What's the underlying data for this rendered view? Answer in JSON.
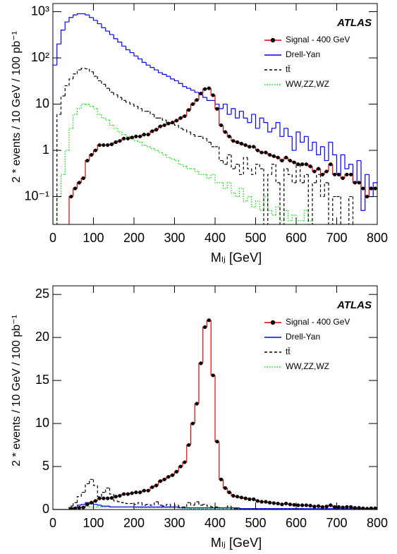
{
  "chart_data": [
    {
      "type": "histogram",
      "log_y": true,
      "legend": "upper right",
      "annotation": "ATLAS",
      "xlabel": "Mₗⱼ [GeV]",
      "ylabel": "2 * events / 10 GeV / 100 pb⁻¹",
      "bins": [
        0,
        10,
        20,
        30,
        40,
        50,
        60,
        70,
        80,
        90,
        100,
        110,
        120,
        130,
        140,
        150,
        160,
        170,
        180,
        190,
        200,
        210,
        220,
        230,
        240,
        250,
        260,
        270,
        280,
        290,
        300,
        310,
        320,
        330,
        340,
        350,
        360,
        370,
        380,
        390,
        400,
        410,
        420,
        430,
        440,
        450,
        460,
        470,
        480,
        490,
        500,
        510,
        520,
        530,
        540,
        550,
        560,
        570,
        580,
        590,
        600,
        610,
        620,
        630,
        640,
        650,
        660,
        670,
        680,
        690,
        700,
        710,
        720,
        730,
        740,
        750,
        760,
        770,
        780,
        790,
        800
      ],
      "xlim": [
        0,
        800
      ],
      "xticks": [
        0,
        100,
        200,
        300,
        400,
        500,
        600,
        700,
        800
      ],
      "ylim": [
        0.025,
        1500
      ],
      "yticks": [
        {
          "value": 0.1,
          "label": "10⁻¹"
        },
        1,
        10,
        {
          "value": 100,
          "label": "10²"
        },
        {
          "value": 1000,
          "label": "10³"
        }
      ],
      "series": [
        {
          "name": "Signal - 400 GeV",
          "color": "#e00000",
          "marker_color": "#000000",
          "line_style": "solid",
          "values": [
            0,
            0,
            0,
            0,
            0.1,
            0.15,
            0.2,
            0.25,
            0.6,
            0.8,
            1.0,
            1.3,
            1.3,
            1.3,
            1.35,
            1.5,
            1.6,
            1.8,
            1.8,
            1.9,
            2.0,
            2.0,
            2.2,
            2.2,
            2.6,
            2.8,
            3.3,
            3.5,
            3.8,
            4.0,
            4.4,
            5.0,
            5.5,
            7.5,
            10,
            12.3,
            17,
            21.2,
            22,
            15.6,
            7.9,
            3.5,
            2.5,
            2.0,
            1.6,
            1.5,
            1.4,
            1.3,
            1.2,
            1.2,
            1.0,
            0.9,
            0.9,
            0.8,
            0.75,
            0.7,
            0.6,
            0.7,
            0.6,
            0.55,
            0.5,
            0.5,
            0.5,
            0.45,
            0.35,
            0.4,
            0.3,
            0.35,
            0.5,
            0.3,
            0.3,
            0.25,
            0.3,
            0.3,
            0.2,
            0.2,
            0.15,
            0.1,
            0.15,
            0.15
          ]
        },
        {
          "name": "Drell-Yan",
          "color": "#0000ff",
          "line_style": "solid",
          "values": [
            70,
            200,
            400,
            600,
            750,
            850,
            900,
            900,
            850,
            750,
            650,
            550,
            450,
            380,
            320,
            260,
            220,
            180,
            150,
            130,
            110,
            95,
            80,
            70,
            62,
            55,
            48,
            44,
            40,
            35,
            32,
            28,
            24,
            22,
            20,
            18,
            16,
            14,
            12,
            12,
            10,
            8,
            10,
            6,
            8,
            5,
            7,
            5,
            4,
            6,
            3,
            5,
            4,
            2.5,
            3,
            4,
            2,
            3,
            2,
            1,
            2.5,
            1.5,
            2,
            1,
            1.5,
            0.8,
            1.2,
            0.6,
            1.5,
            0.8,
            0.3,
            0.8,
            0.4,
            0.5,
            0.2,
            0.6,
            0.05,
            0.3,
            0.1,
            0.2
          ]
        },
        {
          "name": "tt̄",
          "color": "#000000",
          "line_style": "dashed",
          "values": [
            0,
            6,
            15,
            25,
            35,
            45,
            55,
            60,
            58,
            50,
            40,
            32,
            27,
            22,
            18,
            16,
            14,
            12,
            11,
            10,
            9,
            8,
            7,
            7,
            6,
            5,
            5,
            4.5,
            4,
            3.8,
            3.5,
            3,
            2.8,
            2.5,
            2.2,
            2,
            2,
            1.8,
            1.5,
            1.2,
            1.2,
            0.6,
            0.5,
            0.8,
            0.4,
            0.5,
            0.3,
            0.7,
            0.4,
            0.3,
            0.5,
            0.4,
            0,
            0.3,
            0.5,
            0.2,
            0,
            0.4,
            0.3,
            0.2,
            0.5,
            0.2,
            0.3,
            0,
            0.2,
            0.3,
            0.1,
            0.2,
            0,
            0.1,
            0.1,
            0,
            0,
            0.1,
            0,
            0,
            0,
            0,
            0,
            0
          ]
        },
        {
          "name": "WW,ZZ,WZ",
          "color": "#00dd00",
          "line_style": "dotted",
          "values": [
            0,
            0.1,
            0.3,
            1,
            3,
            6,
            8,
            10,
            10,
            9,
            8,
            6,
            5,
            4.5,
            3.5,
            3,
            2.5,
            2.2,
            2,
            1.8,
            1.6,
            1.5,
            1.3,
            1.2,
            1.1,
            1.0,
            0.9,
            0.8,
            0.7,
            0.65,
            0.6,
            0.5,
            0.45,
            0.4,
            0.4,
            0.35,
            0.3,
            0.3,
            0.25,
            0.3,
            0.2,
            0.2,
            0.15,
            0.2,
            0.12,
            0.1,
            0.15,
            0.08,
            0.1,
            0.06,
            0.08,
            0.05,
            0.1,
            0.05,
            0.04,
            0.06,
            0.03,
            0.05,
            0.03,
            0.04,
            0.03,
            0.03,
            0.05,
            0.03,
            0,
            0,
            0,
            0,
            0,
            0,
            0,
            0,
            0,
            0,
            0,
            0,
            0,
            0,
            0,
            0
          ]
        }
      ]
    },
    {
      "type": "histogram",
      "log_y": false,
      "legend": "upper right",
      "annotation": "ATLAS",
      "xlabel": "Mₗⱼ [GeV]",
      "ylabel": "2 * events / 10 GeV / 100 pb⁻¹",
      "bins": [
        0,
        10,
        20,
        30,
        40,
        50,
        60,
        70,
        80,
        90,
        100,
        110,
        120,
        130,
        140,
        150,
        160,
        170,
        180,
        190,
        200,
        210,
        220,
        230,
        240,
        250,
        260,
        270,
        280,
        290,
        300,
        310,
        320,
        330,
        340,
        350,
        360,
        370,
        380,
        390,
        400,
        410,
        420,
        430,
        440,
        450,
        460,
        470,
        480,
        490,
        500,
        510,
        520,
        530,
        540,
        550,
        560,
        570,
        580,
        590,
        600,
        610,
        620,
        630,
        640,
        650,
        660,
        670,
        680,
        690,
        700,
        710,
        720,
        730,
        740,
        750,
        760,
        770,
        780,
        790,
        800
      ],
      "xlim": [
        0,
        800
      ],
      "xticks": [
        0,
        100,
        200,
        300,
        400,
        500,
        600,
        700,
        800
      ],
      "ylim": [
        0,
        26
      ],
      "yticks": [
        0,
        5,
        10,
        15,
        20,
        25
      ],
      "series": [
        {
          "name": "Signal - 400 GeV",
          "color": "#e00000",
          "marker_color": "#000000",
          "line_style": "solid",
          "values": [
            0,
            0,
            0,
            0,
            0.1,
            0.15,
            0.2,
            0.25,
            0.6,
            0.8,
            1.0,
            1.3,
            1.3,
            1.3,
            1.35,
            1.5,
            1.6,
            1.8,
            1.8,
            1.9,
            2.0,
            2.0,
            2.2,
            2.2,
            2.6,
            2.8,
            3.3,
            3.5,
            3.8,
            4.0,
            4.4,
            5.0,
            5.5,
            7.5,
            10,
            12.3,
            17,
            21.2,
            22,
            15.6,
            7.9,
            3.5,
            2.5,
            2.0,
            1.6,
            1.5,
            1.4,
            1.3,
            1.2,
            1.2,
            1.0,
            0.9,
            0.9,
            0.8,
            0.75,
            0.7,
            0.6,
            0.7,
            0.6,
            0.55,
            0.5,
            0.5,
            0.5,
            0.45,
            0.35,
            0.4,
            0.3,
            0.35,
            0.5,
            0.3,
            0.3,
            0.25,
            0.3,
            0.3,
            0.2,
            0.2,
            0.15,
            0.1,
            0.15,
            0.15
          ]
        },
        {
          "name": "Drell-Yan",
          "color": "#0000ff",
          "line_style": "solid",
          "values": [
            0,
            0,
            0,
            0,
            0,
            0.2,
            0.5,
            0.6,
            0.8,
            0.7,
            0.6,
            0.5,
            0.4,
            0.4,
            0.3,
            0.3,
            0.3,
            0.3,
            0.3,
            0.3,
            0.3,
            0.3,
            0.3,
            0.3,
            0.3,
            0.3,
            0.3,
            0.3,
            0.3,
            0.3,
            0.3,
            0.2,
            0.2,
            0.2,
            0.2,
            0.2,
            0.2,
            0.2,
            0.2,
            0.2,
            0.2,
            0.2,
            0.2,
            0.2,
            0.2,
            0.2,
            0.1,
            0.1,
            0.1,
            0.1,
            0.1,
            0.1,
            0.1,
            0.1,
            0.1,
            0.1,
            0.1,
            0.1,
            0.1,
            0.1,
            0.1,
            0.1,
            0.1,
            0.1,
            0.1,
            0.1,
            0.1,
            0.1,
            0.1,
            0.1,
            0.1,
            0.1,
            0.1,
            0.1,
            0.1,
            0.1,
            0.1,
            0.1,
            0.1,
            0.1
          ]
        },
        {
          "name": "tt̄",
          "color": "#000000",
          "line_style": "dashed",
          "values": [
            0,
            0,
            0,
            0,
            0.4,
            0.8,
            1.5,
            2,
            3,
            3.5,
            2.8,
            1.5,
            2,
            2.5,
            1.8,
            1,
            0.9,
            0.8,
            0.7,
            0.7,
            0.6,
            0.8,
            0.5,
            0.6,
            0.5,
            0.9,
            0.5,
            0.4,
            0.6,
            0.3,
            0.5,
            0.3,
            0.3,
            0.8,
            0.5,
            0.9,
            0.5,
            0.6,
            0.4,
            0.3,
            0.3,
            0.2,
            0.2,
            0.4,
            0.1,
            0.1,
            0.1,
            0.1,
            0.1,
            0.1,
            0.1,
            0.1,
            0.1,
            0.1,
            0.1,
            0.1,
            0.1,
            0.1,
            0.1,
            0.1,
            0.1,
            0.1,
            0,
            0,
            0,
            0,
            0,
            0,
            0,
            0,
            0,
            0,
            0,
            0,
            0,
            0,
            0,
            0,
            0,
            0
          ]
        },
        {
          "name": "WW,ZZ,WZ",
          "color": "#00dd00",
          "line_style": "dotted",
          "values": [
            0,
            0,
            0,
            0,
            0.1,
            0.2,
            0.3,
            0.3,
            0.3,
            0.3,
            0.3,
            0.3,
            0.3,
            0.3,
            0.3,
            0.3,
            0.3,
            0.3,
            0.3,
            0.3,
            0.2,
            0.2,
            0.2,
            0.2,
            0.2,
            0.2,
            0.2,
            0.2,
            0.2,
            0.2,
            0.2,
            0.2,
            0.1,
            0.1,
            0.1,
            0.1,
            0.1,
            0.1,
            0.1,
            0.1,
            0.1,
            0.1,
            0.1,
            0.1,
            0.1,
            0.1,
            0.1,
            0.1,
            0.1,
            0.1,
            0.05,
            0.05,
            0.05,
            0.05,
            0.05,
            0.05,
            0.05,
            0.05,
            0.05,
            0.05,
            0,
            0,
            0,
            0,
            0,
            0,
            0,
            0,
            0,
            0,
            0,
            0,
            0,
            0,
            0,
            0,
            0,
            0,
            0,
            0
          ]
        }
      ]
    }
  ]
}
